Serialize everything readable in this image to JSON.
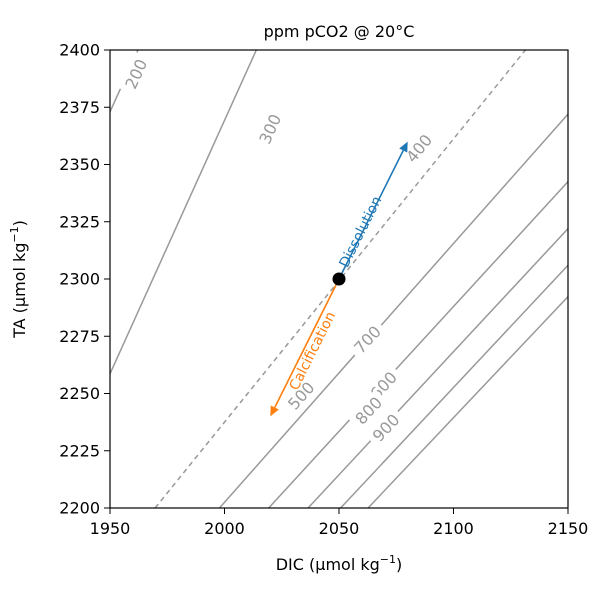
{
  "chart_data": {
    "type": "line",
    "title": "ppm pCO2 @ 20°C",
    "xlabel": "DIC (µmol kg",
    "xlabel_sup": "−1",
    "xlabel_end": ")",
    "ylabel": "TA (µmol kg",
    "ylabel_sup": "−1",
    "ylabel_end": ")",
    "xlim": [
      1950,
      2150
    ],
    "ylim": [
      2200,
      2400
    ],
    "xticks": [
      "1950",
      "2000",
      "2050",
      "2100",
      "2150"
    ],
    "yticks": [
      "2200",
      "2225",
      "2250",
      "2275",
      "2300",
      "2325",
      "2350",
      "2375",
      "2400"
    ],
    "grid": false,
    "colors": {
      "contour": "#999999",
      "dissolution": "#1f77b4",
      "calcification": "#ff7f0e",
      "point": "#000000"
    },
    "contours": [
      {
        "label": "200",
        "style": "solid",
        "x": [
          1950,
          2025
        ],
        "y": [
          2373,
          2538.8
        ],
        "label_at": [
          1961.5,
          2389.5
        ]
      },
      {
        "label": "300",
        "style": "solid",
        "x": [
          1950,
          2045.7
        ],
        "y": [
          2258.6,
          2470.4
        ],
        "label_at": [
          2020,
          2365.5
        ]
      },
      {
        "label": "400",
        "style": "dashed",
        "x": [
          1969.7,
          2150
        ],
        "y": [
          2200,
          2423
        ],
        "label_at": [
          2085,
          2357
        ]
      },
      {
        "label": "500",
        "style": "solid",
        "x": [
          1997.8,
          2150
        ],
        "y": [
          2200,
          2372
        ],
        "label_at": [
          2033.5,
          2249
        ]
      },
      {
        "label": "600",
        "style": "solid",
        "x": [
          2019.3,
          2150
        ],
        "y": [
          2200,
          2342.5
        ],
        "label_at": [
          2069.5,
          2253.5
        ]
      },
      {
        "label": "700",
        "style": "solid",
        "x": [
          2036.5,
          2150
        ],
        "y": [
          2200,
          2322
        ],
        "label_at": [
          2062.5,
          2273.5
        ]
      },
      {
        "label": "800",
        "style": "solid",
        "x": [
          2050.7,
          2150
        ],
        "y": [
          2200,
          2306
        ],
        "label_at": [
          2063,
          2242.5
        ]
      },
      {
        "label": "900",
        "style": "solid",
        "x": [
          2062.7,
          2150
        ],
        "y": [
          2200,
          2292.3
        ],
        "label_at": [
          2070.6,
          2235
        ]
      }
    ],
    "point": {
      "x": 2050,
      "y": 2300
    },
    "arrows": [
      {
        "name": "Dissolution",
        "from": [
          2050,
          2300
        ],
        "to": [
          2080,
          2360
        ],
        "color": "#1f77b4",
        "label_at": [
          2059.6,
          2320.5
        ]
      },
      {
        "name": "Calcification",
        "from": [
          2050,
          2300
        ],
        "to": [
          2020,
          2240
        ],
        "color": "#ff7f0e",
        "label_at": [
          2038.6,
          2268.5
        ]
      }
    ]
  }
}
